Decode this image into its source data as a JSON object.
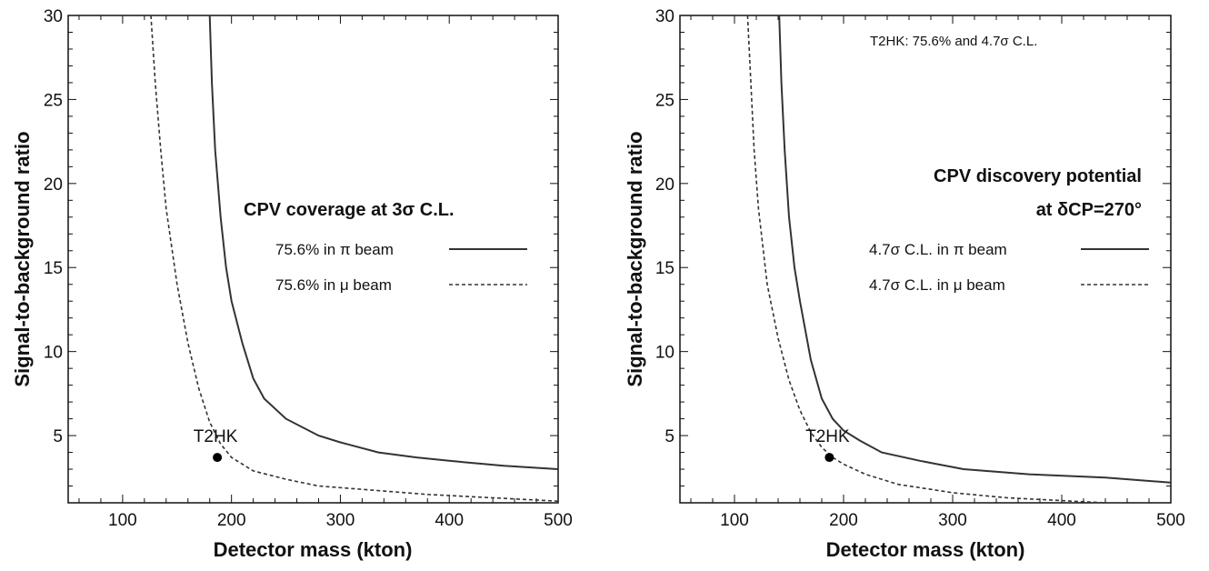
{
  "chart_data": [
    {
      "type": "line",
      "xlabel": "Detector mass (kton)",
      "ylabel": "Signal-to-background ratio",
      "xlim": [
        50,
        500
      ],
      "ylim": [
        1,
        30
      ],
      "xticks": [
        100,
        200,
        300,
        400,
        500
      ],
      "yticks": [
        5,
        10,
        15,
        20,
        25,
        30
      ],
      "legend_title": "CPV coverage at 3σ C.L.",
      "top_note": "",
      "series": [
        {
          "name": "75.6% in π beam",
          "style": "solid",
          "x": [
            180,
            182,
            185,
            190,
            195,
            200,
            210,
            220,
            230,
            250,
            280,
            300,
            335,
            370,
            400,
            450,
            500
          ],
          "y": [
            30,
            26,
            22,
            18,
            15,
            13,
            10.5,
            8.4,
            7.2,
            6.0,
            5.0,
            4.6,
            4.0,
            3.7,
            3.5,
            3.2,
            3.0
          ]
        },
        {
          "name": "75.6% in μ beam",
          "style": "dashed",
          "x": [
            126,
            130,
            135,
            140,
            150,
            160,
            170,
            180,
            190,
            200,
            220,
            250,
            280,
            320,
            380,
            440,
            500
          ],
          "y": [
            30,
            26,
            22,
            18.5,
            14,
            10.5,
            7.8,
            5.8,
            4.5,
            3.7,
            2.9,
            2.4,
            2.0,
            1.8,
            1.5,
            1.3,
            1.1
          ]
        }
      ],
      "point": {
        "label": "T2HK",
        "x": 187,
        "y": 3.7
      }
    },
    {
      "type": "line",
      "xlabel": "Detector mass (kton)",
      "ylabel": "Signal-to-background ratio",
      "xlim": [
        50,
        500
      ],
      "ylim": [
        1,
        30
      ],
      "xticks": [
        100,
        200,
        300,
        400,
        500
      ],
      "yticks": [
        5,
        10,
        15,
        20,
        25,
        30
      ],
      "legend_title": "CPV discovery potential",
      "legend_title2": "at δCP=270°",
      "top_note": "T2HK: 75.6% and 4.7σ C.L.",
      "series": [
        {
          "name": "4.7σ C.L. in π beam",
          "style": "solid",
          "x": [
            141,
            143,
            146,
            150,
            155,
            160,
            170,
            180,
            190,
            200,
            215,
            235,
            270,
            310,
            370,
            440,
            500
          ],
          "y": [
            30,
            26,
            22,
            18,
            15,
            13,
            9.5,
            7.2,
            6.0,
            5.3,
            4.7,
            4.0,
            3.5,
            3.0,
            2.7,
            2.5,
            2.2
          ]
        },
        {
          "name": "4.7σ C.L. in μ beam",
          "style": "dashed",
          "x": [
            112,
            115,
            118,
            122,
            130,
            140,
            150,
            160,
            170,
            180,
            190,
            200,
            220,
            250,
            300,
            350,
            410,
            440
          ],
          "y": [
            30,
            26,
            22,
            18.5,
            14,
            10.8,
            8.3,
            6.5,
            5.2,
            4.3,
            3.7,
            3.3,
            2.7,
            2.1,
            1.6,
            1.3,
            1.1,
            1.0
          ]
        }
      ],
      "point": {
        "label": "T2HK",
        "x": 187,
        "y": 3.7
      }
    }
  ]
}
